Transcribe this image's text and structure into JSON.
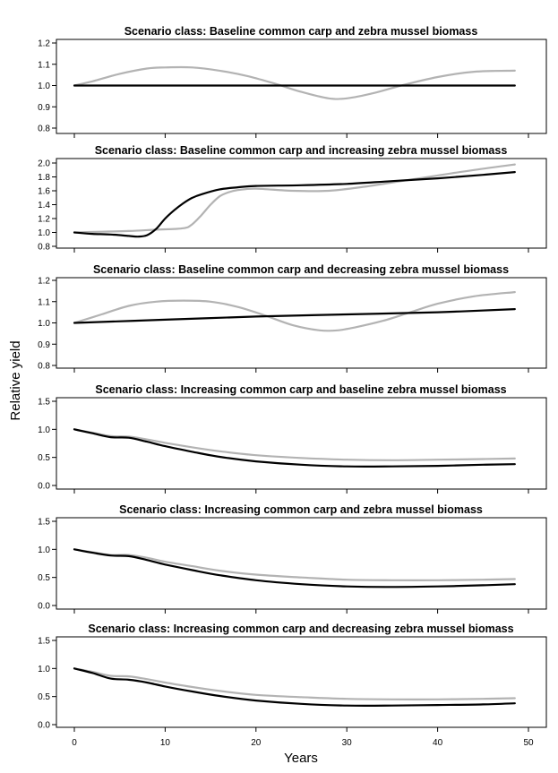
{
  "figure": {
    "ylabel": "Relative yield",
    "xlabel": "Years",
    "x_ticks": [
      0,
      10,
      20,
      30,
      40,
      50
    ]
  },
  "colors": {
    "black_series": "#000000",
    "gray_series": "#b3b3b3"
  },
  "chart_data": [
    {
      "type": "line",
      "title": "Scenario class: Baseline common carp and zebra mussel biomass",
      "ylim": [
        0.8,
        1.2
      ],
      "yticks": [
        "0.8",
        "0.9",
        "1.0",
        "1.1",
        "1.2"
      ],
      "xlim": [
        0,
        50
      ],
      "series": [
        {
          "color": "black",
          "x": [
            0,
            48.5
          ],
          "y": [
            1.0,
            1.0
          ]
        },
        {
          "color": "gray",
          "x": [
            0,
            2,
            5,
            8,
            10,
            13,
            16,
            19,
            22,
            25,
            28,
            30,
            33,
            36,
            40,
            44,
            48.5
          ],
          "y": [
            1.0,
            1.02,
            1.055,
            1.08,
            1.085,
            1.085,
            1.07,
            1.045,
            1.01,
            0.97,
            0.94,
            0.94,
            0.965,
            1.0,
            1.04,
            1.065,
            1.07
          ]
        }
      ]
    },
    {
      "type": "line",
      "title": "Scenario class: Baseline common carp and increasing zebra mussel biomass",
      "ylim": [
        0.8,
        2.0
      ],
      "yticks": [
        "0.8",
        "1.0",
        "1.2",
        "1.4",
        "1.6",
        "1.8",
        "2.0"
      ],
      "xlim": [
        0,
        50
      ],
      "series": [
        {
          "color": "black",
          "x": [
            0,
            2,
            4,
            6,
            7,
            8,
            9,
            10,
            11,
            12,
            13,
            14,
            16,
            18,
            20,
            25,
            30,
            35,
            40,
            45,
            48.5
          ],
          "y": [
            1.0,
            0.98,
            0.97,
            0.95,
            0.94,
            0.96,
            1.05,
            1.2,
            1.32,
            1.42,
            1.5,
            1.55,
            1.62,
            1.65,
            1.67,
            1.68,
            1.7,
            1.74,
            1.78,
            1.83,
            1.87
          ]
        },
        {
          "color": "gray",
          "x": [
            0,
            3,
            6,
            9,
            12,
            13,
            14,
            15,
            16,
            17,
            18,
            20,
            24,
            28,
            32,
            36,
            40,
            44,
            48.5
          ],
          "y": [
            1.0,
            1.01,
            1.02,
            1.04,
            1.06,
            1.12,
            1.25,
            1.4,
            1.52,
            1.58,
            1.61,
            1.63,
            1.6,
            1.6,
            1.66,
            1.74,
            1.82,
            1.9,
            1.98
          ]
        }
      ]
    },
    {
      "type": "line",
      "title": "Scenario class: Baseline common carp and decreasing zebra mussel biomass",
      "ylim": [
        0.8,
        1.2
      ],
      "yticks": [
        "0.8",
        "0.9",
        "1.0",
        "1.1",
        "1.2"
      ],
      "xlim": [
        0,
        50
      ],
      "series": [
        {
          "color": "black",
          "x": [
            0,
            10,
            20,
            30,
            40,
            48.5
          ],
          "y": [
            1.0,
            1.015,
            1.03,
            1.04,
            1.05,
            1.065
          ]
        },
        {
          "color": "gray",
          "x": [
            0,
            3,
            6,
            9,
            12,
            15,
            18,
            21,
            24,
            27,
            29,
            31,
            34,
            37,
            40,
            44,
            48.5
          ],
          "y": [
            1.0,
            1.04,
            1.08,
            1.1,
            1.105,
            1.1,
            1.075,
            1.035,
            0.99,
            0.965,
            0.965,
            0.98,
            1.01,
            1.05,
            1.09,
            1.125,
            1.145
          ]
        }
      ]
    },
    {
      "type": "line",
      "title": "Scenario class: Increasing common carp and baseline zebra mussel biomass",
      "ylim": [
        0.0,
        1.5
      ],
      "yticks": [
        "0.0",
        "0.5",
        "1.0",
        "1.5"
      ],
      "xlim": [
        0,
        50
      ],
      "series": [
        {
          "color": "black",
          "x": [
            0,
            2,
            4,
            6,
            8,
            10,
            13,
            16,
            20,
            25,
            30,
            35,
            40,
            45,
            48.5
          ],
          "y": [
            1.0,
            0.93,
            0.86,
            0.85,
            0.78,
            0.7,
            0.6,
            0.51,
            0.43,
            0.37,
            0.34,
            0.34,
            0.35,
            0.37,
            0.38
          ]
        },
        {
          "color": "gray",
          "x": [
            0,
            2,
            4,
            6,
            8,
            10,
            13,
            16,
            20,
            25,
            30,
            35,
            40,
            45,
            48.5
          ],
          "y": [
            1.0,
            0.94,
            0.88,
            0.87,
            0.82,
            0.76,
            0.68,
            0.61,
            0.54,
            0.49,
            0.46,
            0.45,
            0.46,
            0.47,
            0.48
          ]
        }
      ]
    },
    {
      "type": "line",
      "title": "Scenario class: Increasing common carp and zebra mussel biomass",
      "ylim": [
        0.0,
        1.5
      ],
      "yticks": [
        "0.0",
        "0.5",
        "1.0",
        "1.5"
      ],
      "xlim": [
        0,
        50
      ],
      "series": [
        {
          "color": "black",
          "x": [
            0,
            2,
            4,
            6,
            8,
            10,
            13,
            16,
            20,
            25,
            30,
            35,
            40,
            45,
            48.5
          ],
          "y": [
            1.0,
            0.94,
            0.89,
            0.88,
            0.81,
            0.73,
            0.63,
            0.54,
            0.45,
            0.38,
            0.34,
            0.33,
            0.34,
            0.36,
            0.38
          ]
        },
        {
          "color": "gray",
          "x": [
            0,
            2,
            4,
            6,
            8,
            10,
            13,
            16,
            20,
            25,
            30,
            35,
            40,
            45,
            48.5
          ],
          "y": [
            1.0,
            0.95,
            0.9,
            0.9,
            0.85,
            0.78,
            0.7,
            0.62,
            0.55,
            0.5,
            0.46,
            0.45,
            0.45,
            0.46,
            0.47
          ]
        }
      ]
    },
    {
      "type": "line",
      "title": "Scenario class: Increasing common carp and decreasing zebra mussel biomass",
      "ylim": [
        0.0,
        1.5
      ],
      "yticks": [
        "0.0",
        "0.5",
        "1.0",
        "1.5"
      ],
      "xlim": [
        0,
        50
      ],
      "series": [
        {
          "color": "black",
          "x": [
            0,
            2,
            4,
            6,
            8,
            10,
            13,
            16,
            20,
            25,
            30,
            35,
            40,
            45,
            48.5
          ],
          "y": [
            1.0,
            0.92,
            0.82,
            0.8,
            0.75,
            0.68,
            0.59,
            0.51,
            0.43,
            0.37,
            0.34,
            0.34,
            0.35,
            0.36,
            0.38
          ]
        },
        {
          "color": "gray",
          "x": [
            0,
            2,
            4,
            6,
            8,
            10,
            13,
            16,
            20,
            25,
            30,
            35,
            40,
            45,
            48.5
          ],
          "y": [
            1.0,
            0.94,
            0.87,
            0.86,
            0.81,
            0.75,
            0.67,
            0.6,
            0.53,
            0.49,
            0.46,
            0.45,
            0.45,
            0.46,
            0.47
          ]
        }
      ]
    }
  ]
}
